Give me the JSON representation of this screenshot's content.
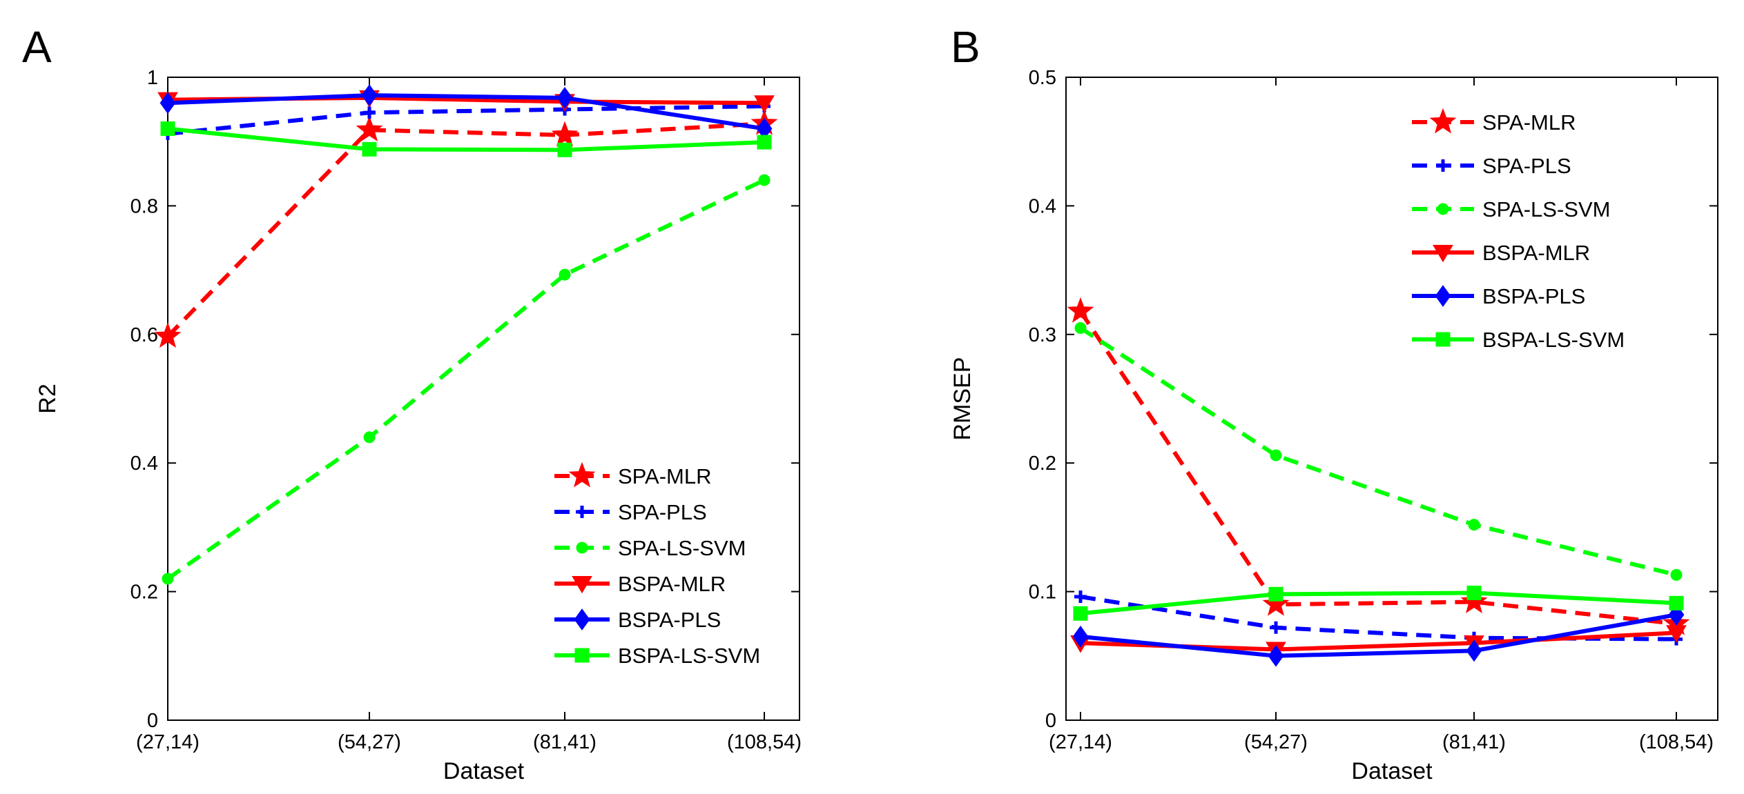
{
  "chart_data": [
    {
      "panel": "A",
      "type": "line",
      "title": "",
      "xlabel": "Dataset",
      "ylabel": "R2",
      "categories": [
        "(27,14)",
        "(54,27)",
        "(81,41)",
        "(108,54)"
      ],
      "ylim": [
        0,
        1
      ],
      "yticks": [
        0,
        0.2,
        0.4,
        0.6,
        0.8,
        1
      ],
      "ytick_labels": [
        "0",
        "0.2",
        "0.4",
        "0.6",
        "0.8",
        "1"
      ],
      "legend_position": "bottom-right",
      "series": [
        {
          "name": "SPA-MLR",
          "values": [
            0.597,
            0.918,
            0.91,
            0.928
          ],
          "color": "#ff0000",
          "dash": "dashed",
          "marker": "star"
        },
        {
          "name": "SPA-PLS",
          "values": [
            0.912,
            0.945,
            0.95,
            0.955
          ],
          "color": "#0000ff",
          "dash": "dashed",
          "marker": "plus"
        },
        {
          "name": "SPA-LS-SVM",
          "values": [
            0.22,
            0.44,
            0.693,
            0.84
          ],
          "color": "#00ff00",
          "dash": "dashed",
          "marker": "circle"
        },
        {
          "name": "BSPA-MLR",
          "values": [
            0.965,
            0.968,
            0.962,
            0.96
          ],
          "color": "#ff0000",
          "dash": "solid",
          "marker": "triangle-down"
        },
        {
          "name": "BSPA-PLS",
          "values": [
            0.96,
            0.972,
            0.968,
            0.92
          ],
          "color": "#0000ff",
          "dash": "solid",
          "marker": "diamond"
        },
        {
          "name": "BSPA-LS-SVM",
          "values": [
            0.92,
            0.888,
            0.887,
            0.899
          ],
          "color": "#00ff00",
          "dash": "solid",
          "marker": "square"
        }
      ]
    },
    {
      "panel": "B",
      "type": "line",
      "title": "",
      "xlabel": "Dataset",
      "ylabel": "RMSEP",
      "categories": [
        "(27,14)",
        "(54,27)",
        "(81,41)",
        "(108,54)"
      ],
      "ylim": [
        0,
        0.5
      ],
      "yticks": [
        0,
        0.1,
        0.2,
        0.3,
        0.4,
        0.5
      ],
      "ytick_labels": [
        "0",
        "0.1",
        "0.2",
        "0.3",
        "0.4",
        "0.5"
      ],
      "legend_position": "top-right",
      "series": [
        {
          "name": "SPA-MLR",
          "values": [
            0.318,
            0.09,
            0.092,
            0.075
          ],
          "color": "#ff0000",
          "dash": "dashed",
          "marker": "star"
        },
        {
          "name": "SPA-PLS",
          "values": [
            0.096,
            0.072,
            0.064,
            0.063
          ],
          "color": "#0000ff",
          "dash": "dashed",
          "marker": "plus"
        },
        {
          "name": "SPA-LS-SVM",
          "values": [
            0.305,
            0.206,
            0.152,
            0.113
          ],
          "color": "#00ff00",
          "dash": "dashed",
          "marker": "circle"
        },
        {
          "name": "BSPA-MLR",
          "values": [
            0.06,
            0.055,
            0.06,
            0.068
          ],
          "color": "#ff0000",
          "dash": "solid",
          "marker": "triangle-down"
        },
        {
          "name": "BSPA-PLS",
          "values": [
            0.065,
            0.05,
            0.054,
            0.082
          ],
          "color": "#0000ff",
          "dash": "solid",
          "marker": "diamond"
        },
        {
          "name": "BSPA-LS-SVM",
          "values": [
            0.083,
            0.098,
            0.099,
            0.091
          ],
          "color": "#00ff00",
          "dash": "solid",
          "marker": "square"
        }
      ]
    }
  ]
}
